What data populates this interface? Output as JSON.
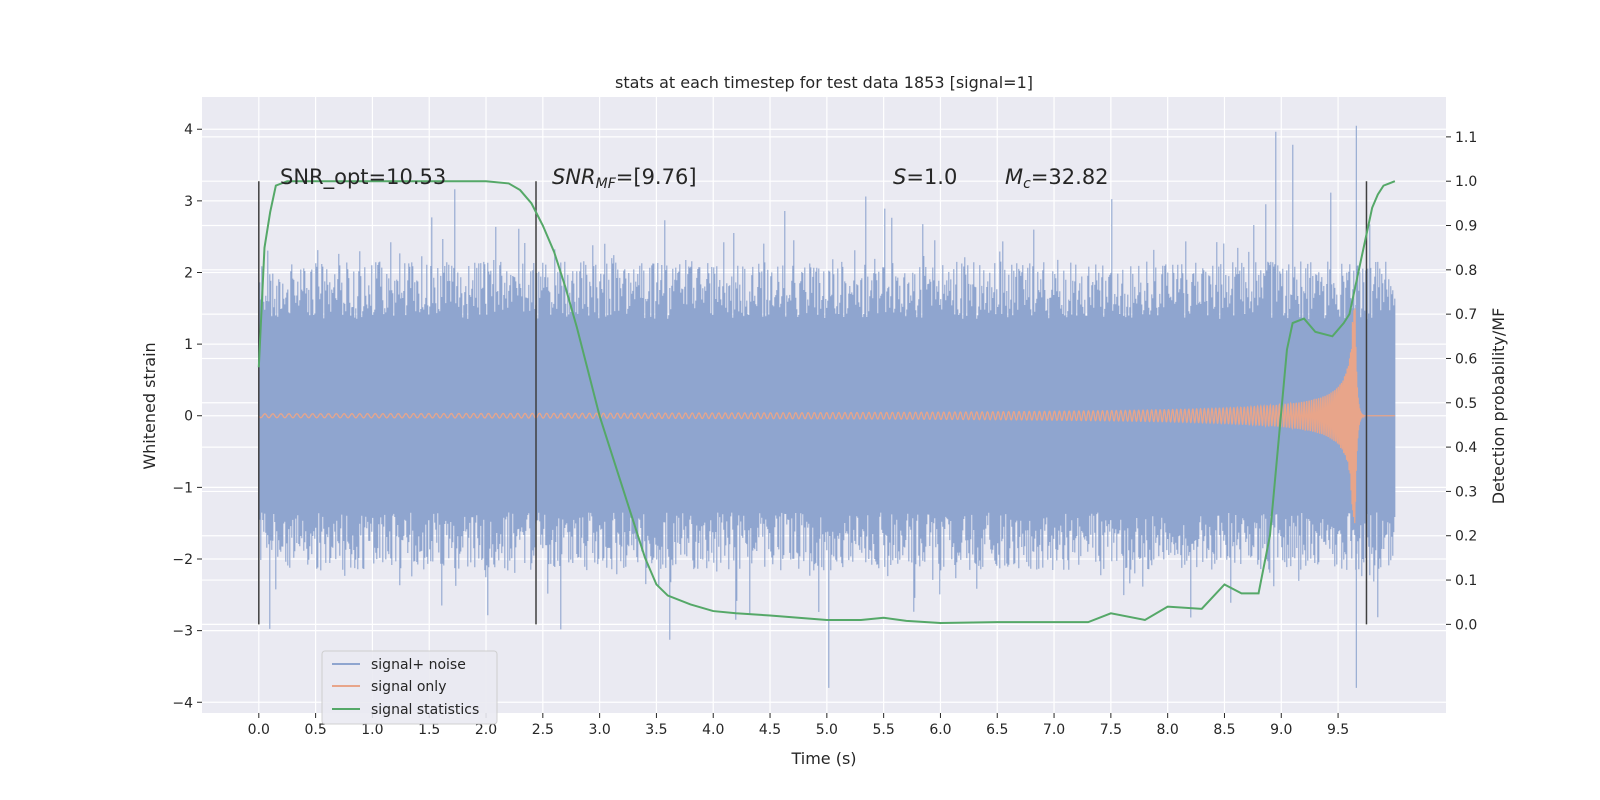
{
  "chart_data": {
    "type": "line",
    "title": "stats at each timestep for test data 1853 [signal=1]",
    "xlabel": "Time (s)",
    "ylabel_left": "Whitened strain",
    "ylabel_right": "Detection probability/MF",
    "xlim": [
      -0.5,
      10.45
    ],
    "ylim_left": [
      -4.15,
      4.45
    ],
    "ylim_right": [
      -0.2,
      1.19
    ],
    "x_ticks": [
      0.0,
      0.5,
      1.0,
      1.5,
      2.0,
      2.5,
      3.0,
      3.5,
      4.0,
      4.5,
      5.0,
      5.5,
      6.0,
      6.5,
      7.0,
      7.5,
      8.0,
      8.5,
      9.0,
      9.5
    ],
    "x_tick_labels": [
      "0.0",
      "0.5",
      "1.0",
      "1.5",
      "2.0",
      "2.5",
      "3.0",
      "3.5",
      "4.0",
      "4.5",
      "5.0",
      "5.5",
      "6.0",
      "6.5",
      "7.0",
      "7.5",
      "8.0",
      "8.5",
      "9.0",
      "9.5"
    ],
    "y_left_ticks": [
      4,
      3,
      2,
      1,
      0,
      -1,
      -2,
      -3,
      -4
    ],
    "y_left_tick_labels": [
      "4",
      "3",
      "2",
      "1",
      "0",
      "−1",
      "−2",
      "−3",
      "−4"
    ],
    "y_right_ticks": [
      1.1,
      1.0,
      0.9,
      0.8,
      0.7,
      0.6,
      0.5,
      0.4,
      0.3,
      0.2,
      0.1,
      0.0
    ],
    "y_right_tick_labels": [
      "1.1",
      "1.0",
      "0.9",
      "0.8",
      "0.7",
      "0.6",
      "0.5",
      "0.4",
      "0.3",
      "0.2",
      "0.1",
      "0.0"
    ],
    "grid": true,
    "legend_position": "lower-left",
    "legend": [
      {
        "label": "signal+ noise",
        "color": "#8fa5cf"
      },
      {
        "label": "signal only",
        "color": "#e8a58a"
      },
      {
        "label": "signal statistics",
        "color": "#55a868"
      }
    ],
    "annotations": {
      "snr_opt": "SNR_opt=10.53",
      "snr_mf_name": "SNR",
      "snr_mf_sub": "MF",
      "snr_mf_value": "=[9.76]",
      "s_name": "S",
      "s_value": "=1.0",
      "mc_name": "M",
      "mc_sub": "c",
      "mc_value": "=32.82"
    },
    "time_markers": [
      0.0,
      2.44,
      9.75
    ],
    "series": [
      {
        "name": "signal+ noise",
        "axis": "left",
        "color": "#8fa5cf",
        "t_start": 0.0,
        "t_end": 10.0,
        "core_amplitude": 1.35,
        "peak_max": 4.05,
        "peak_min": -3.8
      },
      {
        "name": "signal only",
        "axis": "left",
        "color": "#e8a58a",
        "t_start": 0.0,
        "t_end": 10.0,
        "merger_time": 9.65,
        "peak_amplitude": 1.5
      },
      {
        "name": "signal statistics",
        "axis": "right",
        "color": "#55a868",
        "x": [
          0.0,
          0.05,
          0.1,
          0.15,
          0.25,
          0.5,
          1.0,
          1.5,
          2.0,
          2.2,
          2.3,
          2.4,
          2.5,
          2.6,
          2.7,
          2.8,
          2.9,
          3.0,
          3.1,
          3.2,
          3.3,
          3.4,
          3.5,
          3.6,
          3.8,
          4.0,
          4.2,
          4.5,
          5.0,
          5.3,
          5.5,
          5.7,
          6.0,
          6.5,
          7.0,
          7.3,
          7.5,
          7.8,
          8.0,
          8.3,
          8.5,
          8.65,
          8.8,
          8.9,
          9.0,
          9.05,
          9.1,
          9.2,
          9.3,
          9.45,
          9.55,
          9.6,
          9.7,
          9.8,
          9.85,
          9.9,
          9.95,
          10.0
        ],
        "y": [
          0.58,
          0.85,
          0.93,
          0.99,
          1.0,
          1.0,
          1.0,
          1.0,
          1.0,
          0.995,
          0.98,
          0.95,
          0.9,
          0.84,
          0.76,
          0.67,
          0.57,
          0.47,
          0.39,
          0.31,
          0.23,
          0.15,
          0.09,
          0.065,
          0.045,
          0.03,
          0.025,
          0.02,
          0.01,
          0.01,
          0.015,
          0.008,
          0.003,
          0.005,
          0.005,
          0.005,
          0.025,
          0.01,
          0.04,
          0.035,
          0.09,
          0.07,
          0.07,
          0.2,
          0.48,
          0.62,
          0.68,
          0.69,
          0.66,
          0.65,
          0.68,
          0.7,
          0.82,
          0.94,
          0.97,
          0.99,
          0.995,
          1.0
        ]
      }
    ]
  }
}
